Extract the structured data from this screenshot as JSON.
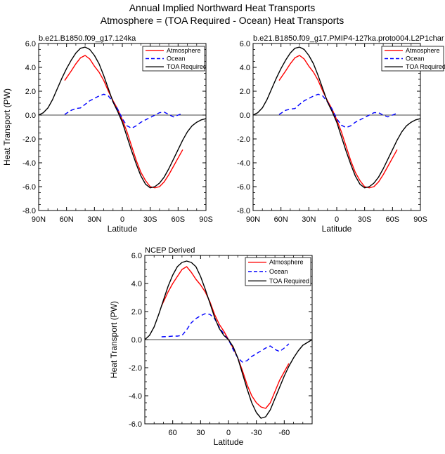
{
  "figure": {
    "title_line1": "Annual Implied Northward Heat Transports",
    "title_line2": "Atmosphere = (TOA Required - Ocean) Heat Transports"
  },
  "chart_data": [
    {
      "type": "line",
      "title": "b.e21.B1850.f09_g17.124ka",
      "xlabel": "Latitude",
      "ylabel": "Heat Transport (PW)",
      "xlim": [
        90,
        -90
      ],
      "ylim": [
        -8,
        6
      ],
      "xticks": [
        90,
        60,
        30,
        0,
        -30,
        -60,
        -90
      ],
      "xtick_labels": [
        "90N",
        "60N",
        "30N",
        "0",
        "30S",
        "60S",
        "90S"
      ],
      "yticks": [
        6,
        4,
        2,
        0,
        -2,
        -4,
        -6,
        -8
      ],
      "ytick_labels": [
        "6.0",
        "4.0",
        "2.0",
        "0.0",
        "-2.0",
        "-4.0",
        "-6.0",
        "-8.0"
      ],
      "zero_line": true,
      "legend_position": "top-right",
      "series": [
        {
          "name": "Atmosphere",
          "color": "#ff0000",
          "dash": "solid",
          "x": [
            62,
            55,
            50,
            45,
            40,
            35,
            30,
            25,
            20,
            15,
            10,
            5,
            0,
            -5,
            -10,
            -15,
            -20,
            -25,
            -30,
            -35,
            -40,
            -45,
            -50,
            -55,
            -60,
            -65
          ],
          "y": [
            2.9,
            3.7,
            4.3,
            4.8,
            5.0,
            4.7,
            4.1,
            3.6,
            2.9,
            2.0,
            1.2,
            0.5,
            -0.4,
            -1.4,
            -2.6,
            -3.8,
            -4.8,
            -5.5,
            -6.0,
            -6.1,
            -6.0,
            -5.6,
            -5.0,
            -4.3,
            -3.6,
            -2.9
          ]
        },
        {
          "name": "Ocean",
          "color": "#0000ff",
          "dash": "dashed",
          "x": [
            62,
            55,
            50,
            45,
            40,
            35,
            30,
            25,
            20,
            15,
            10,
            5,
            0,
            -5,
            -10,
            -15,
            -20,
            -25,
            -30,
            -35,
            -40,
            -45,
            -50,
            -55,
            -60,
            -65
          ],
          "y": [
            0.05,
            0.4,
            0.55,
            0.6,
            0.9,
            1.2,
            1.4,
            1.6,
            1.75,
            1.6,
            1.1,
            0.5,
            -0.3,
            -0.9,
            -1.1,
            -0.9,
            -0.6,
            -0.4,
            -0.2,
            0.0,
            0.2,
            0.25,
            0.05,
            -0.15,
            0.0,
            0.15
          ]
        },
        {
          "name": "TOA Required",
          "color": "#000000",
          "dash": "solid",
          "x": [
            90,
            85,
            80,
            75,
            70,
            65,
            60,
            55,
            50,
            45,
            40,
            35,
            30,
            25,
            20,
            15,
            10,
            5,
            0,
            -5,
            -10,
            -15,
            -20,
            -25,
            -30,
            -35,
            -40,
            -45,
            -50,
            -55,
            -60,
            -65,
            -70,
            -75,
            -80,
            -85,
            -90
          ],
          "y": [
            0.0,
            0.2,
            0.6,
            1.3,
            2.2,
            3.1,
            3.9,
            4.6,
            5.2,
            5.6,
            5.7,
            5.5,
            5.0,
            4.3,
            3.3,
            2.2,
            1.1,
            0.3,
            -0.6,
            -1.8,
            -3.0,
            -4.1,
            -5.1,
            -5.8,
            -6.1,
            -6.0,
            -5.7,
            -5.2,
            -4.5,
            -3.7,
            -2.9,
            -2.1,
            -1.4,
            -0.9,
            -0.6,
            -0.4,
            -0.3
          ]
        }
      ]
    },
    {
      "type": "line",
      "title": "b.e21.B1850.f09_g17.PMIP4-127ka.proto004.L2P1char",
      "xlabel": "Latitude",
      "ylabel": "",
      "xlim": [
        90,
        -90
      ],
      "ylim": [
        -8,
        6
      ],
      "xticks": [
        90,
        60,
        30,
        0,
        -30,
        -60,
        -90
      ],
      "xtick_labels": [
        "90N",
        "60N",
        "30N",
        "0",
        "30S",
        "60S",
        "90S"
      ],
      "yticks": [
        6,
        4,
        2,
        0,
        -2,
        -4,
        -6,
        -8
      ],
      "ytick_labels": [
        "6.0",
        "4.0",
        "2.0",
        "0.0",
        "-2.0",
        "-4.0",
        "-6.0",
        "-8.0"
      ],
      "zero_line": true,
      "legend_position": "top-right",
      "series": [
        {
          "name": "Atmosphere",
          "color": "#ff0000",
          "dash": "solid",
          "x": [
            62,
            55,
            50,
            45,
            40,
            35,
            30,
            25,
            20,
            15,
            10,
            5,
            0,
            -5,
            -10,
            -15,
            -20,
            -25,
            -30,
            -35,
            -40,
            -45,
            -50,
            -55,
            -60,
            -65
          ],
          "y": [
            2.9,
            3.7,
            4.3,
            4.8,
            5.0,
            4.7,
            4.1,
            3.6,
            2.9,
            2.0,
            1.2,
            0.5,
            -0.4,
            -1.4,
            -2.6,
            -3.8,
            -4.8,
            -5.5,
            -6.0,
            -6.1,
            -6.0,
            -5.6,
            -5.0,
            -4.3,
            -3.6,
            -2.9
          ]
        },
        {
          "name": "Ocean",
          "color": "#0000ff",
          "dash": "dashed",
          "x": [
            62,
            55,
            50,
            45,
            40,
            35,
            30,
            25,
            20,
            15,
            10,
            5,
            0,
            -5,
            -10,
            -15,
            -20,
            -25,
            -30,
            -35,
            -40,
            -45,
            -50,
            -55,
            -60,
            -65
          ],
          "y": [
            0.05,
            0.4,
            0.5,
            0.55,
            0.9,
            1.2,
            1.4,
            1.6,
            1.75,
            1.6,
            1.1,
            0.5,
            -0.3,
            -0.85,
            -1.05,
            -0.9,
            -0.6,
            -0.4,
            -0.2,
            0.0,
            0.2,
            0.2,
            0.0,
            -0.15,
            0.0,
            0.15
          ]
        },
        {
          "name": "TOA Required",
          "color": "#000000",
          "dash": "solid",
          "x": [
            90,
            85,
            80,
            75,
            70,
            65,
            60,
            55,
            50,
            45,
            40,
            35,
            30,
            25,
            20,
            15,
            10,
            5,
            0,
            -5,
            -10,
            -15,
            -20,
            -25,
            -30,
            -35,
            -40,
            -45,
            -50,
            -55,
            -60,
            -65,
            -70,
            -75,
            -80,
            -85,
            -90
          ],
          "y": [
            0.0,
            0.2,
            0.6,
            1.3,
            2.2,
            3.1,
            3.9,
            4.6,
            5.2,
            5.6,
            5.7,
            5.5,
            5.0,
            4.3,
            3.3,
            2.2,
            1.1,
            0.3,
            -0.6,
            -1.8,
            -3.0,
            -4.1,
            -5.1,
            -5.8,
            -6.1,
            -6.0,
            -5.7,
            -5.2,
            -4.5,
            -3.7,
            -2.9,
            -2.1,
            -1.4,
            -0.9,
            -0.6,
            -0.4,
            -0.3
          ]
        }
      ]
    },
    {
      "type": "line",
      "title": "NCEP Derived",
      "xlabel": "Latitude",
      "ylabel": "Heat Transport (PW)",
      "xlim": [
        90,
        -90
      ],
      "ylim": [
        -6,
        6
      ],
      "xticks": [
        60,
        30,
        0,
        -30,
        -60
      ],
      "xtick_labels": [
        "60",
        "30",
        "0",
        "-30",
        "-60"
      ],
      "yticks": [
        6,
        4,
        2,
        0,
        -2,
        -4,
        -6
      ],
      "ytick_labels": [
        "6.0",
        "4.0",
        "2.0",
        "0.0",
        "-2.0",
        "-4.0",
        "-6.0"
      ],
      "zero_line": true,
      "legend_position": "top-right",
      "series": [
        {
          "name": "Atmosphere",
          "color": "#ff0000",
          "dash": "solid",
          "x": [
            72,
            65,
            60,
            55,
            50,
            45,
            40,
            35,
            30,
            25,
            20,
            15,
            10,
            5,
            0,
            -5,
            -10,
            -15,
            -20,
            -25,
            -30,
            -35,
            -40,
            -45,
            -50,
            -55,
            -60,
            -65
          ],
          "y": [
            2.4,
            3.4,
            4.0,
            4.5,
            5.0,
            5.2,
            4.8,
            4.3,
            3.9,
            3.4,
            2.7,
            1.8,
            1.1,
            0.6,
            0.0,
            -0.6,
            -1.3,
            -2.2,
            -3.2,
            -4.0,
            -4.5,
            -4.8,
            -4.9,
            -4.5,
            -3.7,
            -2.9,
            -2.3,
            -1.7
          ]
        },
        {
          "name": "Ocean",
          "color": "#0000ff",
          "dash": "dashed",
          "x": [
            72,
            65,
            60,
            55,
            50,
            45,
            40,
            35,
            30,
            25,
            20,
            15,
            10,
            5,
            0,
            -5,
            -10,
            -15,
            -20,
            -25,
            -30,
            -35,
            -40,
            -45,
            -50,
            -55,
            -60,
            -65
          ],
          "y": [
            0.2,
            0.22,
            0.25,
            0.25,
            0.3,
            0.7,
            1.2,
            1.5,
            1.7,
            1.85,
            1.8,
            1.5,
            0.9,
            0.4,
            0.0,
            -0.7,
            -1.3,
            -1.6,
            -1.5,
            -1.2,
            -1.0,
            -0.8,
            -0.6,
            -0.45,
            -0.7,
            -0.85,
            -0.6,
            -0.3
          ]
        },
        {
          "name": "TOA Required",
          "color": "#000000",
          "dash": "solid",
          "x": [
            90,
            85,
            80,
            75,
            70,
            65,
            60,
            55,
            50,
            45,
            40,
            35,
            30,
            25,
            20,
            15,
            10,
            5,
            0,
            -5,
            -10,
            -15,
            -20,
            -25,
            -30,
            -35,
            -40,
            -45,
            -50,
            -55,
            -60,
            -65,
            -70,
            -75,
            -80,
            -85,
            -90
          ],
          "y": [
            0.0,
            0.3,
            0.9,
            1.8,
            2.8,
            3.8,
            4.6,
            5.2,
            5.5,
            5.6,
            5.5,
            5.2,
            4.5,
            3.6,
            2.6,
            1.6,
            0.8,
            0.3,
            0.0,
            -0.5,
            -1.3,
            -2.4,
            -3.5,
            -4.5,
            -5.2,
            -5.6,
            -5.5,
            -5.0,
            -4.2,
            -3.4,
            -2.6,
            -1.9,
            -1.3,
            -0.8,
            -0.4,
            -0.2,
            0.0
          ]
        }
      ]
    }
  ]
}
